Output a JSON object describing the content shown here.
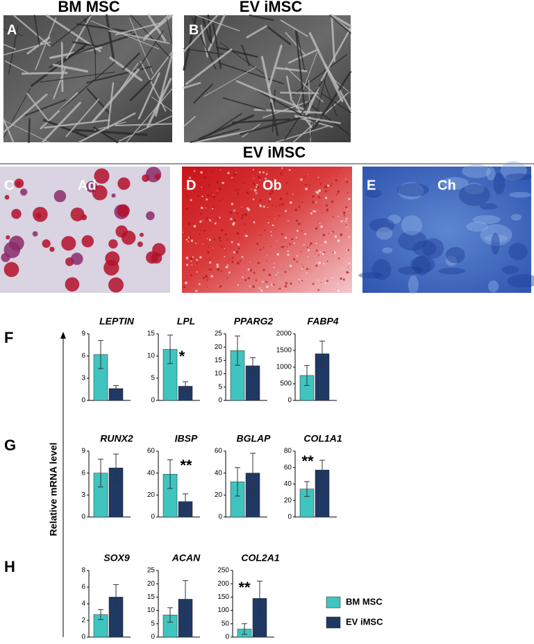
{
  "figure": {
    "top_labels": [
      "BM MSC",
      "EV iMSC"
    ],
    "section_title": "EV iMSC",
    "photos": [
      {
        "letter": "A"
      },
      {
        "letter": "B"
      },
      {
        "letter": "C",
        "label": "Ad"
      },
      {
        "letter": "D",
        "label": "Ob"
      },
      {
        "letter": "E",
        "label": "Ch"
      }
    ],
    "row_labels": [
      "F",
      "G",
      "H"
    ],
    "y_axis_label": "Relative mRNA level"
  },
  "chart_data": [
    {
      "type": "bar",
      "title": "LEPTIN",
      "categories": [
        null
      ],
      "ylim": [
        0,
        9
      ],
      "yticks": [
        0,
        3,
        6,
        9
      ],
      "series": [
        {
          "name": "BM MSC",
          "color": "#3fc4c0",
          "values": [
            6.2
          ],
          "errors": [
            1.9
          ]
        },
        {
          "name": "EV iMSC",
          "color": "#1f3864",
          "values": [
            1.6
          ],
          "errors": [
            0.4
          ]
        }
      ]
    },
    {
      "type": "bar",
      "title": "LPL",
      "annotation": "*",
      "categories": [
        null
      ],
      "ylim": [
        0,
        15
      ],
      "yticks": [
        0,
        5,
        10,
        15
      ],
      "series": [
        {
          "name": "BM MSC",
          "color": "#3fc4c0",
          "values": [
            11.5
          ],
          "errors": [
            3.2
          ]
        },
        {
          "name": "EV iMSC",
          "color": "#1f3864",
          "values": [
            3.2
          ],
          "errors": [
            1.0
          ]
        }
      ]
    },
    {
      "type": "bar",
      "title": "PPARG2",
      "categories": [
        null
      ],
      "ylim": [
        0,
        25
      ],
      "yticks": [
        0,
        5,
        10,
        15,
        20,
        25
      ],
      "series": [
        {
          "name": "BM MSC",
          "color": "#3fc4c0",
          "values": [
            18.7
          ],
          "errors": [
            5.5
          ]
        },
        {
          "name": "EV iMSC",
          "color": "#1f3864",
          "values": [
            13
          ],
          "errors": [
            3
          ]
        }
      ]
    },
    {
      "type": "bar",
      "title": "FABP4",
      "categories": [
        null
      ],
      "ylim": [
        0,
        2000
      ],
      "yticks": [
        0,
        500,
        1000,
        1500,
        2000
      ],
      "series": [
        {
          "name": "BM MSC",
          "color": "#3fc4c0",
          "values": [
            750
          ],
          "errors": [
            300
          ]
        },
        {
          "name": "EV iMSC",
          "color": "#1f3864",
          "values": [
            1400
          ],
          "errors": [
            380
          ]
        }
      ]
    },
    {
      "type": "bar",
      "title": "RUNX2",
      "categories": [
        null
      ],
      "ylim": [
        0,
        9
      ],
      "yticks": [
        0,
        3,
        6,
        9
      ],
      "series": [
        {
          "name": "BM MSC",
          "color": "#3fc4c0",
          "values": [
            6.0
          ],
          "errors": [
            1.9
          ]
        },
        {
          "name": "EV iMSC",
          "color": "#1f3864",
          "values": [
            6.7
          ],
          "errors": [
            1.9
          ]
        }
      ]
    },
    {
      "type": "bar",
      "title": "IBSP",
      "annotation": "**",
      "categories": [
        null
      ],
      "ylim": [
        0,
        60
      ],
      "yticks": [
        0,
        20,
        40,
        60
      ],
      "series": [
        {
          "name": "BM MSC",
          "color": "#3fc4c0",
          "values": [
            39
          ],
          "errors": [
            13
          ]
        },
        {
          "name": "EV iMSC",
          "color": "#1f3864",
          "values": [
            14
          ],
          "errors": [
            7
          ]
        }
      ]
    },
    {
      "type": "bar",
      "title": "BGLAP",
      "categories": [
        null
      ],
      "ylim": [
        0,
        60
      ],
      "yticks": [
        0,
        20,
        40,
        60
      ],
      "series": [
        {
          "name": "BM MSC",
          "color": "#3fc4c0",
          "values": [
            32
          ],
          "errors": [
            13
          ]
        },
        {
          "name": "EV iMSC",
          "color": "#1f3864",
          "values": [
            40
          ],
          "errors": [
            18
          ]
        }
      ]
    },
    {
      "type": "bar",
      "title": "COL1A1",
      "annotation": "**",
      "categories": [
        null
      ],
      "ylim": [
        0,
        80
      ],
      "yticks": [
        0,
        20,
        40,
        60,
        80
      ],
      "series": [
        {
          "name": "BM MSC",
          "color": "#3fc4c0",
          "values": [
            34
          ],
          "errors": [
            9
          ]
        },
        {
          "name": "EV iMSC",
          "color": "#1f3864",
          "values": [
            57
          ],
          "errors": [
            12
          ]
        }
      ]
    },
    {
      "type": "bar",
      "title": "SOX9",
      "categories": [
        null
      ],
      "ylim": [
        0,
        8
      ],
      "yticks": [
        0,
        2,
        4,
        6,
        8
      ],
      "series": [
        {
          "name": "BM MSC",
          "color": "#3fc4c0",
          "values": [
            2.7
          ],
          "errors": [
            0.6
          ]
        },
        {
          "name": "EV iMSC",
          "color": "#1f3864",
          "values": [
            4.8
          ],
          "errors": [
            1.5
          ]
        }
      ]
    },
    {
      "type": "bar",
      "title": "ACAN",
      "categories": [
        null
      ],
      "ylim": [
        0,
        25
      ],
      "yticks": [
        0,
        5,
        10,
        15,
        20,
        25
      ],
      "series": [
        {
          "name": "BM MSC",
          "color": "#3fc4c0",
          "values": [
            8.3
          ],
          "errors": [
            2.7
          ]
        },
        {
          "name": "EV iMSC",
          "color": "#1f3864",
          "values": [
            14.2
          ],
          "errors": [
            7
          ]
        }
      ]
    },
    {
      "type": "bar",
      "title": "COL2A1",
      "annotation": "**",
      "categories": [
        null
      ],
      "ylim": [
        0,
        250
      ],
      "yticks": [
        0,
        50,
        100,
        150,
        200,
        250
      ],
      "series": [
        {
          "name": "BM MSC",
          "color": "#3fc4c0",
          "values": [
            30
          ],
          "errors": [
            20
          ]
        },
        {
          "name": "EV iMSC",
          "color": "#1f3864",
          "values": [
            145
          ],
          "errors": [
            65
          ]
        }
      ]
    }
  ]
}
